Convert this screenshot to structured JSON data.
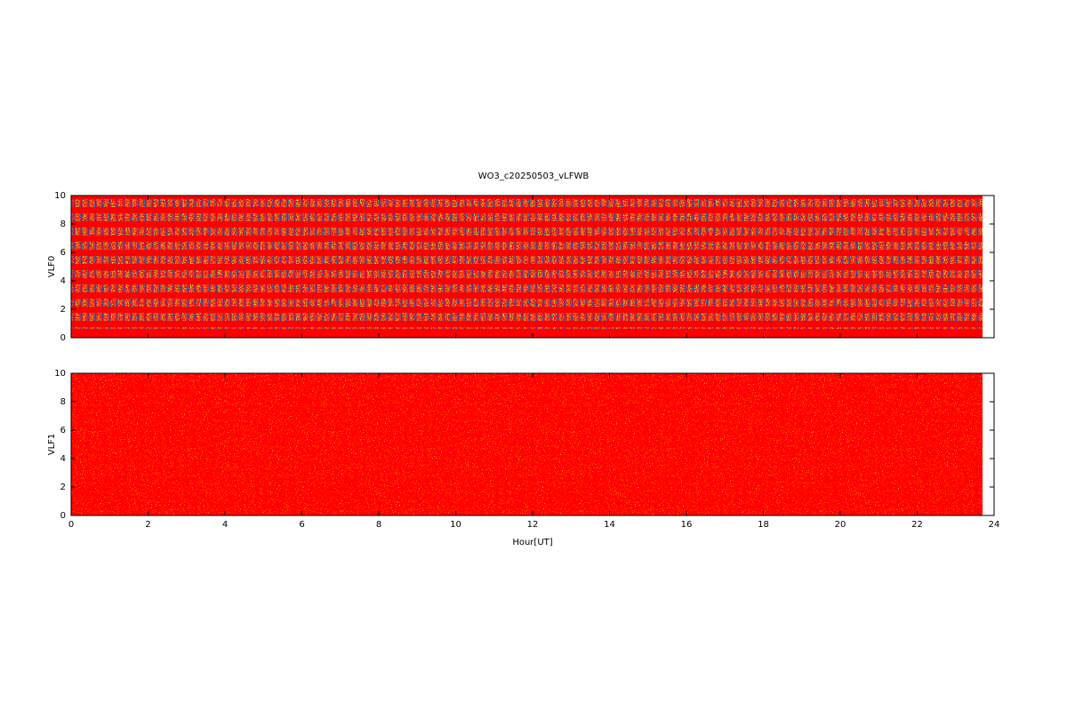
{
  "chart_data": [
    {
      "type": "spectrogram",
      "title": "WO3_c20250503_vLFWB",
      "ylabel": "VLF0",
      "xlim": [
        0,
        24
      ],
      "xticks": [
        0,
        2,
        4,
        6,
        8,
        10,
        12,
        14,
        16,
        18,
        20,
        22,
        24
      ],
      "ylim": [
        0,
        10
      ],
      "yticks": [
        0,
        2,
        4,
        6,
        8,
        10
      ],
      "data_xrange": [
        0,
        23.7
      ]
    },
    {
      "type": "spectrogram",
      "ylabel": "VLF1",
      "xlabel": "Hour[UT]",
      "xlim": [
        0,
        24
      ],
      "xticks": [
        0,
        2,
        4,
        6,
        8,
        10,
        12,
        14,
        16,
        18,
        20,
        22,
        24
      ],
      "ylim": [
        0,
        10
      ],
      "yticks": [
        0,
        2,
        4,
        6,
        8,
        10
      ],
      "data_xrange": [
        0,
        23.7
      ]
    }
  ]
}
